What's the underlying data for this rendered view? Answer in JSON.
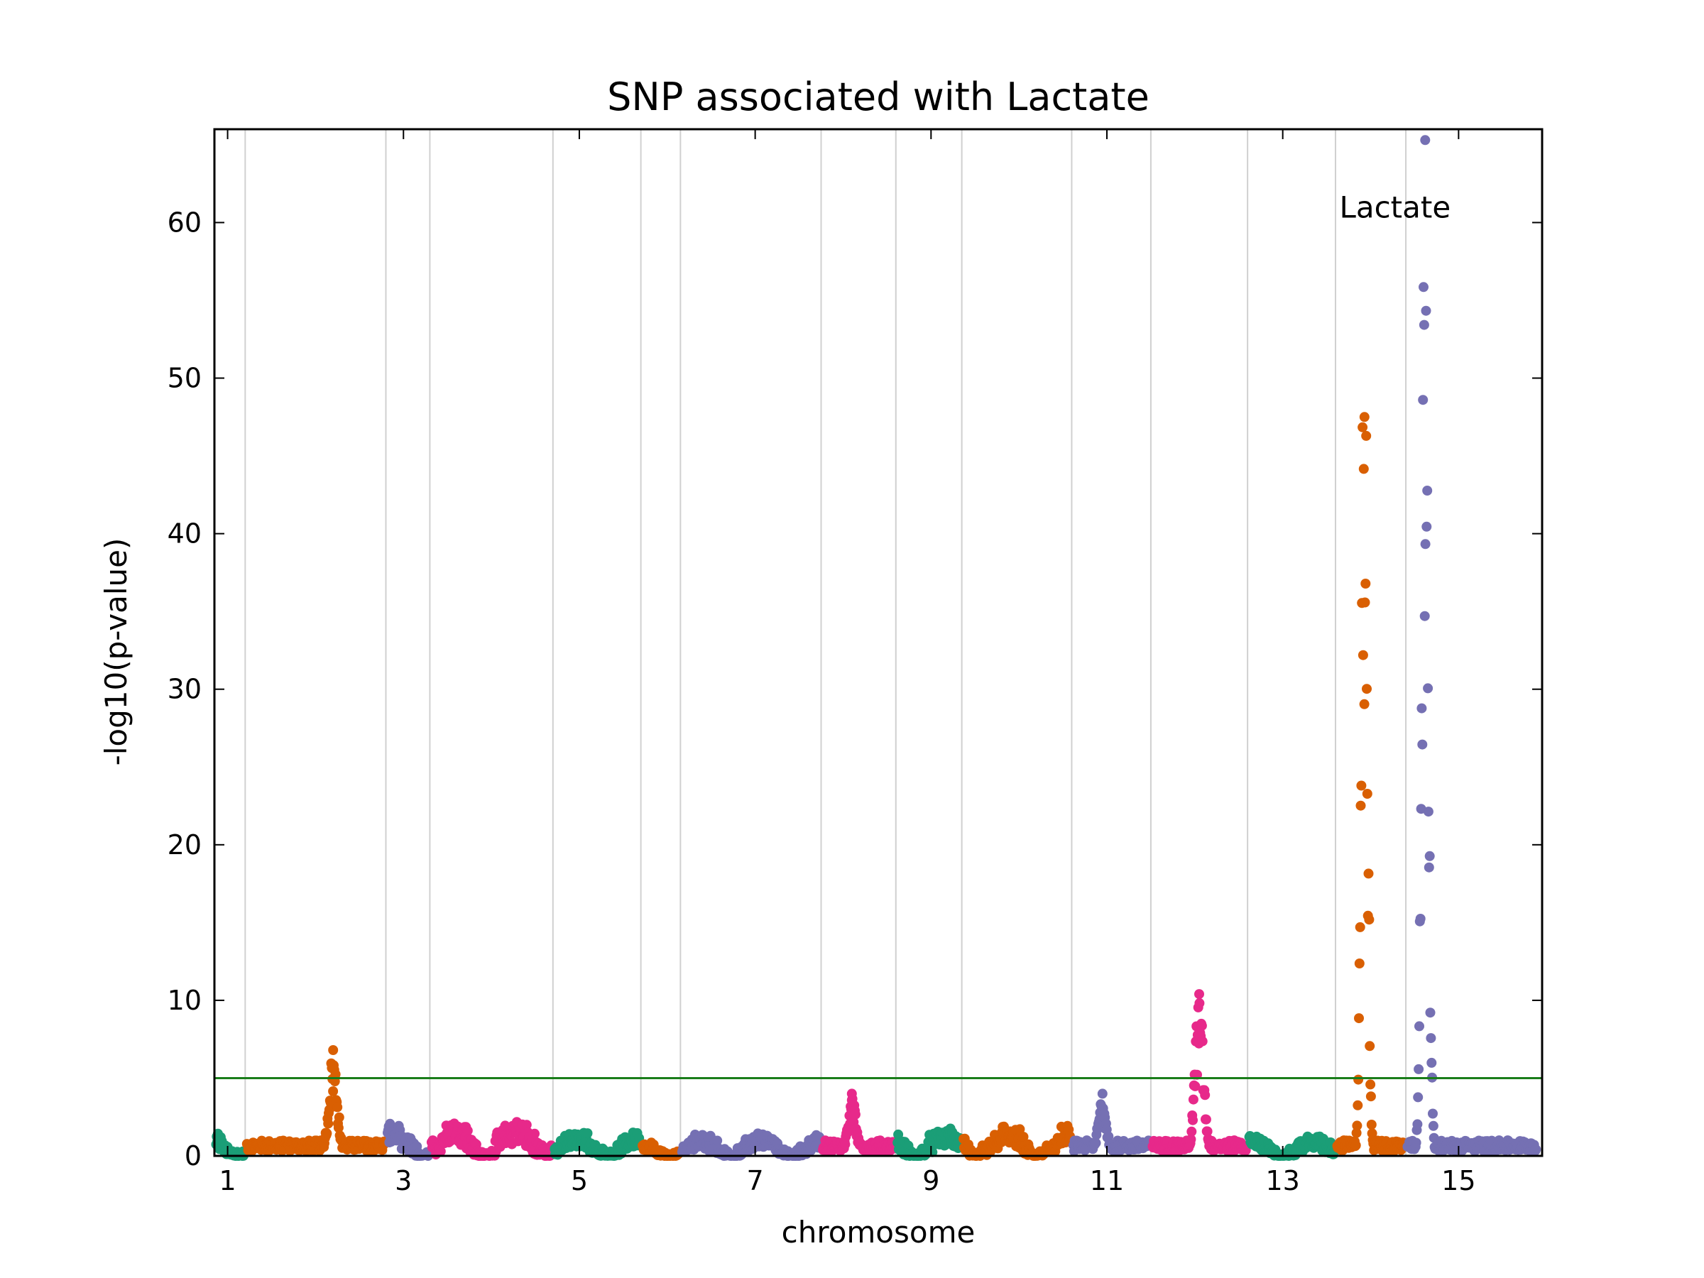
{
  "chart_data": {
    "type": "scatter",
    "title": "SNP associated with Lactate",
    "xlabel": "chromosome",
    "ylabel": "-log10(p-value)",
    "ylim": [
      0,
      66
    ],
    "yticks": [
      0,
      10,
      20,
      30,
      40,
      50,
      60
    ],
    "xticks": [
      {
        "label": "1",
        "x": 1
      },
      {
        "label": "3",
        "x": 3
      },
      {
        "label": "5",
        "x": 5
      },
      {
        "label": "7",
        "x": 7
      },
      {
        "label": "9",
        "x": 9
      },
      {
        "label": "11",
        "x": 11
      },
      {
        "label": "13",
        "x": 13
      },
      {
        "label": "15",
        "x": 15
      }
    ],
    "grid": "vertical lines at chromosome boundaries",
    "threshold": 5,
    "threshold_color": "#1a7d1a",
    "colors": [
      "#1b9e77",
      "#d95f02",
      "#7570b3",
      "#e7298a"
    ],
    "annotation": {
      "text": "Lactate",
      "x": 14.6,
      "y": 61
    },
    "chromosomes": [
      {
        "chr": 1,
        "start": 0.85,
        "end": 1.2,
        "color": "#1b9e77",
        "peak": 1.6
      },
      {
        "chr": 2,
        "start": 1.2,
        "end": 2.8,
        "color": "#d95f02",
        "peak": 6.8,
        "peak_pos": 2.2
      },
      {
        "chr": 3,
        "start": 2.8,
        "end": 3.3,
        "color": "#7570b3",
        "peak": 2.1
      },
      {
        "chr": 4,
        "start": 3.3,
        "end": 4.7,
        "color": "#e7298a",
        "peak": 2.3
      },
      {
        "chr": 5,
        "start": 4.7,
        "end": 5.7,
        "color": "#1b9e77",
        "peak": 1.6
      },
      {
        "chr": 6,
        "start": 5.7,
        "end": 6.15,
        "color": "#d95f02",
        "peak": 1.2
      },
      {
        "chr": 7,
        "start": 6.15,
        "end": 7.75,
        "color": "#7570b3",
        "peak": 1.5
      },
      {
        "chr": 8,
        "start": 7.75,
        "end": 8.6,
        "color": "#e7298a",
        "peak": 4.0,
        "peak_pos": 8.1
      },
      {
        "chr": 9,
        "start": 8.6,
        "end": 9.35,
        "color": "#1b9e77",
        "peak": 1.8
      },
      {
        "chr": 10,
        "start": 9.35,
        "end": 10.6,
        "color": "#d95f02",
        "peak": 2.0
      },
      {
        "chr": 11,
        "start": 10.6,
        "end": 11.5,
        "color": "#7570b3",
        "peak": 4.0,
        "peak_pos": 10.95
      },
      {
        "chr": 12,
        "start": 11.5,
        "end": 12.6,
        "color": "#e7298a",
        "peak": 10.4,
        "peak_pos": 12.05
      },
      {
        "chr": 13,
        "start": 12.6,
        "end": 13.6,
        "color": "#1b9e77",
        "peak": 1.3
      },
      {
        "chr": 14,
        "start": 13.6,
        "end": 14.4,
        "color": "#d95f02",
        "peak": 47.5,
        "peak_pos": 13.93
      },
      {
        "chr": 15,
        "start": 14.4,
        "end": 15.9,
        "color": "#7570b3",
        "peak": 65.3,
        "peak_pos": 14.62
      }
    ]
  }
}
